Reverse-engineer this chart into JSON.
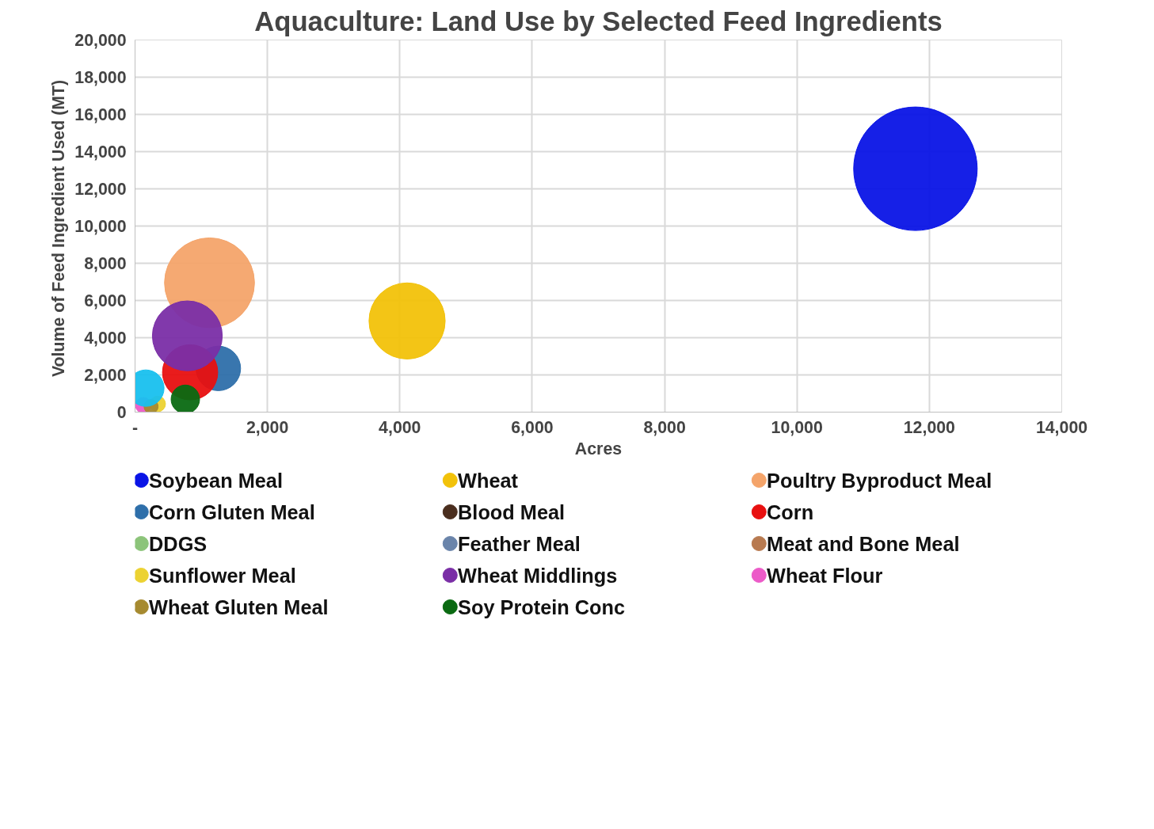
{
  "chart_data": {
    "type": "bubble",
    "title": "Aquaculture: Land Use by Selected Feed Ingredients",
    "xlabel": "Acres",
    "ylabel": "Volume of Feed Ingredient Used  (MT)",
    "xlim": [
      0,
      14000
    ],
    "xticks": [
      {
        "value": 0,
        "label": "-"
      },
      {
        "value": 2000,
        "label": "2,000"
      },
      {
        "value": 4000,
        "label": "4,000"
      },
      {
        "value": 6000,
        "label": "6,000"
      },
      {
        "value": 8000,
        "label": "8,000"
      },
      {
        "value": 10000,
        "label": "10,000"
      },
      {
        "value": 12000,
        "label": "12,000"
      },
      {
        "value": 14000,
        "label": "14,000"
      }
    ],
    "ylim": [
      0,
      20000
    ],
    "yticks": [
      {
        "value": 0,
        "label": "0"
      },
      {
        "value": 2000,
        "label": "2,000"
      },
      {
        "value": 4000,
        "label": "4,000"
      },
      {
        "value": 6000,
        "label": "6,000"
      },
      {
        "value": 8000,
        "label": "8,000"
      },
      {
        "value": 10000,
        "label": "10,000"
      },
      {
        "value": 12000,
        "label": "12,000"
      },
      {
        "value": 14000,
        "label": "14,000"
      },
      {
        "value": 16000,
        "label": "16,000"
      },
      {
        "value": 18000,
        "label": "18,000"
      },
      {
        "value": 20000,
        "label": "20,000"
      }
    ],
    "grid": true,
    "legend": "bottom",
    "series": [
      {
        "name": "Soybean Meal",
        "color": "#0a14e6",
        "x": [
          11790
        ],
        "values": [
          13080
        ],
        "sizes": [
          1
        ]
      },
      {
        "name": "Wheat",
        "color": "#f2c20a",
        "x": [
          4110
        ],
        "values": [
          4900
        ],
        "sizes": [
          0.38
        ]
      },
      {
        "name": "Poultry Byproduct Meal",
        "color": "#f4a46a",
        "x": [
          1125
        ],
        "values": [
          6950
        ],
        "sizes": [
          0.53
        ]
      },
      {
        "name": "Corn Gluten Meal",
        "color": "#2e6faa",
        "x": [
          1258
        ],
        "values": [
          2350
        ],
        "sizes": [
          0.13
        ]
      },
      {
        "name": "Blood Meal",
        "color": "#4a2e1e"
      },
      {
        "name": "Corn",
        "color": "#e81010",
        "x": [
          832
        ],
        "values": [
          2140
        ],
        "sizes": [
          0.2
        ]
      },
      {
        "name": "DDGS",
        "color": "#8cc47a"
      },
      {
        "name": "Feather Meal",
        "color": "#6a84aa"
      },
      {
        "name": "Meat and Bone Meal",
        "color": "#b87a50"
      },
      {
        "name": "Sunflower Meal",
        "color": "#ecd232",
        "x": [
          342
        ],
        "values": [
          440
        ],
        "sizes": [
          0.016
        ]
      },
      {
        "name": "Wheat Middlings",
        "color": "#7a2ea6",
        "x": [
          790
        ],
        "values": [
          4100
        ],
        "sizes": [
          0.32
        ]
      },
      {
        "name": "Wheat Flour",
        "color": "#ec5ac8",
        "x": [
          124
        ],
        "values": [
          370
        ],
        "sizes": [
          0.016
        ]
      },
      {
        "name": "Wheat Gluten Meal",
        "color": "#a68a30",
        "x": [
          242
        ],
        "values": [
          300
        ],
        "sizes": [
          0.013
        ]
      },
      {
        "name": "Soy Protein Conc",
        "color": "#0a6a12",
        "x": [
          760
        ],
        "values": [
          690
        ],
        "sizes": [
          0.053
        ]
      },
      {
        "color": "#18c0ee",
        "x": [
          163
        ],
        "values": [
          1290
        ],
        "sizes": [
          0.087
        ]
      }
    ]
  }
}
